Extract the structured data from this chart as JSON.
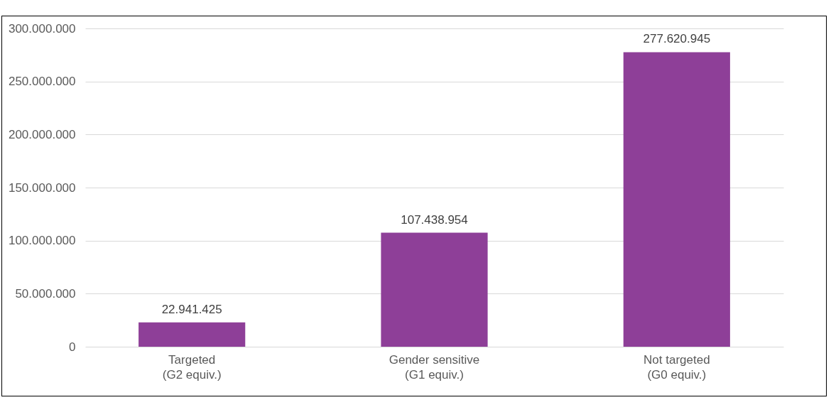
{
  "chart_data": {
    "type": "bar",
    "categories": [
      "Targeted\n(G2 equiv.)",
      "Gender sensitive\n(G1 equiv.)",
      "Not targeted\n(G0 equiv.)"
    ],
    "values": [
      22941425,
      107438954,
      277620945
    ],
    "value_labels": [
      "22.941.425",
      "107.438.954",
      "277.620.945"
    ],
    "color": "#8e3f98",
    "ylim": [
      0,
      300000000
    ],
    "yticks": [
      {
        "value": 0,
        "label": "0"
      },
      {
        "value": 50000000,
        "label": "50.000.000"
      },
      {
        "value": 100000000,
        "label": "100.000.000"
      },
      {
        "value": 150000000,
        "label": "150.000.000"
      },
      {
        "value": 200000000,
        "label": "200.000.000"
      },
      {
        "value": 250000000,
        "label": "250.000.000"
      },
      {
        "value": 300000000,
        "label": "300.000.000"
      }
    ],
    "grid": "y"
  }
}
